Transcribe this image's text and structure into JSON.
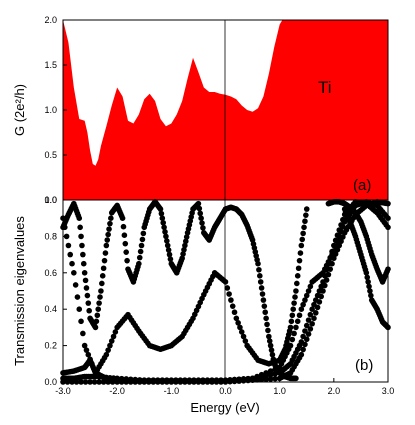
{
  "chart_data": [
    {
      "panel": "(a)",
      "type": "area",
      "element_label": "Ti",
      "xlabel": "",
      "ylabel": "G (2e²/h)",
      "xlim": [
        -3.0,
        3.0
      ],
      "ylim": [
        0.0,
        2.0
      ],
      "yticks": [
        "0.0",
        "0.5",
        "1.0",
        "1.5",
        "2.0"
      ],
      "fill_color": "#ff0000",
      "series": [
        {
          "x": [
            -3.0,
            -2.9,
            -2.8,
            -2.7,
            -2.6,
            -2.55,
            -2.5,
            -2.45,
            -2.4,
            -2.35,
            -2.3,
            -2.2,
            -2.1,
            -2.0,
            -1.9,
            -1.8,
            -1.7,
            -1.6,
            -1.5,
            -1.4,
            -1.3,
            -1.2,
            -1.1,
            -1.0,
            -0.9,
            -0.8,
            -0.7,
            -0.6,
            -0.5,
            -0.4,
            -0.3,
            -0.2,
            -0.1,
            0.0,
            0.1,
            0.2,
            0.3,
            0.4,
            0.5,
            0.6,
            0.7,
            0.8,
            0.9,
            1.0,
            1.05,
            1.1,
            1.2,
            1.5,
            2.0,
            2.5,
            3.0
          ],
          "y": [
            2.0,
            1.75,
            1.25,
            0.9,
            0.88,
            0.75,
            0.55,
            0.4,
            0.38,
            0.45,
            0.6,
            0.82,
            1.05,
            1.25,
            1.15,
            0.88,
            0.85,
            0.95,
            1.12,
            1.18,
            1.1,
            0.9,
            0.82,
            0.85,
            0.95,
            1.1,
            1.35,
            1.58,
            1.42,
            1.25,
            1.2,
            1.2,
            1.18,
            1.17,
            1.15,
            1.12,
            1.05,
            1.0,
            0.98,
            1.02,
            1.15,
            1.4,
            1.7,
            1.95,
            2.0,
            2.0,
            2.0,
            2.0,
            2.0,
            2.0,
            2.0
          ]
        }
      ]
    },
    {
      "panel": "(b)",
      "type": "scatter",
      "xlabel": "Energy (eV)",
      "ylabel": "Transmission eigenvalues",
      "xlim": [
        -3.0,
        3.0
      ],
      "ylim": [
        0.0,
        1.0
      ],
      "xticks": [
        "-3.0",
        "-2.0",
        "-1.0",
        "0.0",
        "1.0",
        "2.0",
        "3.0"
      ],
      "yticks": [
        "0.0",
        "0.2",
        "0.4",
        "0.6",
        "0.8",
        "1.0"
      ],
      "marker_color": "#000000",
      "series": [
        {
          "x": [
            -3.0,
            -2.9,
            -2.8,
            -2.7,
            -2.6,
            -2.5,
            -2.4,
            -2.3,
            -2.2,
            -2.1,
            -2.0,
            -1.9,
            -1.8,
            -1.7,
            -1.6,
            -1.5,
            -1.4,
            -1.3,
            -1.2,
            -1.1,
            -1.0,
            -0.9,
            -0.8,
            -0.7,
            -0.6,
            -0.5,
            -0.4,
            -0.3,
            -0.2,
            -0.1,
            0.0,
            0.1,
            0.2,
            0.3,
            0.4,
            0.5,
            0.6,
            0.7,
            0.8,
            0.9,
            1.0,
            1.1,
            1.2,
            1.3
          ],
          "y": [
            0.85,
            0.92,
            0.98,
            0.9,
            0.6,
            0.35,
            0.3,
            0.5,
            0.75,
            0.93,
            0.97,
            0.9,
            0.62,
            0.55,
            0.65,
            0.85,
            0.95,
            0.99,
            0.95,
            0.8,
            0.65,
            0.6,
            0.68,
            0.82,
            0.95,
            0.98,
            0.82,
            0.78,
            0.85,
            0.9,
            0.95,
            0.96,
            0.95,
            0.92,
            0.86,
            0.78,
            0.65,
            0.45,
            0.25,
            0.1,
            0.05,
            0.03,
            0.02,
            0.02
          ]
        },
        {
          "x": [
            -3.0,
            -2.8,
            -2.6,
            -2.4,
            -2.2,
            -2.0,
            -1.8,
            -1.6,
            -1.4,
            -1.2,
            -1.0,
            -0.8,
            -0.6,
            -0.4,
            -0.2,
            0.0,
            0.2,
            0.4,
            0.6,
            0.8,
            1.0,
            1.1,
            1.2,
            1.3,
            1.4,
            1.5
          ],
          "y": [
            0.9,
            0.6,
            0.2,
            0.05,
            0.15,
            0.3,
            0.37,
            0.28,
            0.2,
            0.18,
            0.2,
            0.25,
            0.35,
            0.48,
            0.6,
            0.55,
            0.35,
            0.2,
            0.12,
            0.1,
            0.12,
            0.18,
            0.3,
            0.5,
            0.75,
            0.95
          ]
        },
        {
          "x": [
            -3.0,
            -2.8,
            -2.6,
            -2.4,
            -2.0,
            -1.5,
            -1.0,
            -0.5,
            0.0,
            0.5,
            1.0,
            1.2,
            1.4,
            1.6,
            1.8,
            2.0,
            2.2,
            2.4,
            2.6,
            2.8,
            3.0
          ],
          "y": [
            0.02,
            0.02,
            0.03,
            0.03,
            0.02,
            0.01,
            0.01,
            0.01,
            0.01,
            0.02,
            0.08,
            0.2,
            0.4,
            0.55,
            0.6,
            0.72,
            0.88,
            0.97,
            0.99,
            0.97,
            0.9
          ]
        },
        {
          "x": [
            -3.0,
            -2.8,
            -2.6,
            -2.5,
            -2.4,
            -2.2,
            -2.0,
            -1.5,
            -1.0,
            -0.5,
            0.0,
            0.5,
            1.0,
            1.2,
            1.4,
            1.6,
            1.8,
            2.0,
            2.2,
            2.4,
            2.6,
            2.8,
            3.0
          ],
          "y": [
            0.05,
            0.06,
            0.08,
            0.12,
            0.05,
            0.02,
            0.01,
            0.01,
            0.01,
            0.01,
            0.01,
            0.02,
            0.05,
            0.1,
            0.22,
            0.4,
            0.55,
            0.75,
            0.92,
            0.99,
            0.98,
            0.93,
            0.85
          ]
        },
        {
          "x": [
            -3.0,
            -2.5,
            -2.0,
            -1.5,
            -1.0,
            -0.5,
            0.0,
            0.5,
            1.0,
            1.2,
            1.4,
            1.6,
            1.8,
            2.0,
            2.2,
            2.4,
            2.6,
            2.8,
            3.0
          ],
          "y": [
            0.0,
            0.0,
            0.0,
            0.0,
            0.0,
            0.0,
            0.0,
            0.01,
            0.02,
            0.05,
            0.15,
            0.32,
            0.5,
            0.68,
            0.82,
            0.92,
            0.97,
            0.99,
            0.98
          ]
        },
        {
          "x": [
            2.2,
            2.3,
            2.4,
            2.5,
            2.6,
            2.7,
            2.8,
            2.9,
            3.0
          ],
          "y": [
            0.95,
            0.88,
            0.8,
            0.7,
            0.6,
            0.45,
            0.4,
            0.33,
            0.3
          ]
        },
        {
          "x": [
            1.9,
            2.0,
            2.1,
            2.2,
            2.3,
            2.4,
            2.5,
            2.6,
            2.7,
            2.8,
            2.9,
            3.0
          ],
          "y": [
            0.98,
            0.99,
            0.99,
            0.98,
            0.96,
            0.93,
            0.88,
            0.8,
            0.7,
            0.62,
            0.55,
            0.62
          ]
        }
      ]
    }
  ]
}
